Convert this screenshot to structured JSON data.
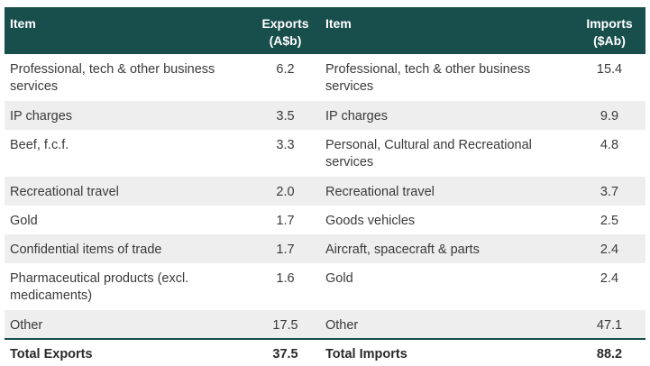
{
  "header": {
    "col_item_left": "Item",
    "col_exports_line1": "Exports",
    "col_exports_line2": "(A$b)",
    "col_item_right": "Item",
    "col_imports_line1": "Imports",
    "col_imports_line2": "($Ab)"
  },
  "rows": [
    {
      "export_item": "Professional, tech & other business services",
      "export_value": "6.2",
      "import_item": "Professional, tech & other business services",
      "import_value": "15.4"
    },
    {
      "export_item": "IP charges",
      "export_value": "3.5",
      "import_item": "IP charges",
      "import_value": "9.9"
    },
    {
      "export_item": "Beef, f.c.f.",
      "export_value": "3.3",
      "import_item": "Personal, Cultural and Recreational services",
      "import_value": "4.8"
    },
    {
      "export_item": "Recreational travel",
      "export_value": "2.0",
      "import_item": "Recreational travel",
      "import_value": "3.7"
    },
    {
      "export_item": "Gold",
      "export_value": "1.7",
      "import_item": "Goods vehicles",
      "import_value": "2.5"
    },
    {
      "export_item": "Confidential items of trade",
      "export_value": "1.7",
      "import_item": "Aircraft, spacecraft & parts",
      "import_value": "2.4"
    },
    {
      "export_item": "Pharmaceutical products (excl. medicaments)",
      "export_value": "1.6",
      "import_item": "Gold",
      "import_value": "2.4"
    },
    {
      "export_item": "Other",
      "export_value": "17.5",
      "import_item": "Other",
      "import_value": "47.1"
    }
  ],
  "totals": {
    "export_label": "Total Exports",
    "export_value": "37.5",
    "import_label": "Total Imports",
    "import_value": "88.2"
  },
  "colors": {
    "header_bg": "#184f4c",
    "stripe": "#eeeeee"
  }
}
